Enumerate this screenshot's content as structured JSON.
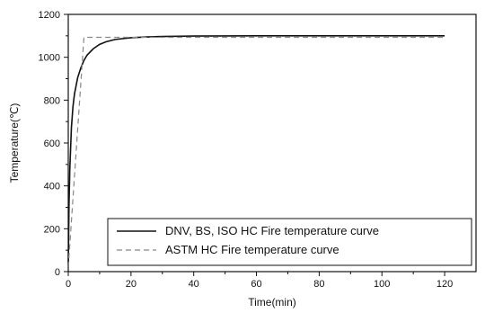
{
  "chart_data": {
    "type": "line",
    "title": "",
    "xlabel": "Time(min)",
    "ylabel": "Temperature(℃)",
    "xlim": [
      0,
      130
    ],
    "ylim": [
      0,
      1200
    ],
    "xticks": [
      0,
      20,
      40,
      60,
      80,
      100,
      120
    ],
    "yticks": [
      0,
      200,
      400,
      600,
      800,
      1000,
      1200
    ],
    "grid": false,
    "legend_position": "bottom-right",
    "series": [
      {
        "name": "DNV, BS, ISO HC Fire temperature curve",
        "style": "solid",
        "color": "#111111",
        "x": [
          0,
          0.25,
          0.5,
          1,
          1.5,
          2,
          3,
          4,
          5,
          6,
          8,
          10,
          12,
          15,
          20,
          25,
          30,
          40,
          60,
          80,
          100,
          120
        ],
        "y": [
          20,
          320,
          480,
          670,
          770,
          830,
          905,
          950,
          985,
          1010,
          1040,
          1060,
          1072,
          1083,
          1091,
          1095,
          1097,
          1099,
          1100,
          1100,
          1100,
          1100
        ]
      },
      {
        "name": "ASTM HC Fire temperature curve",
        "style": "dashed",
        "color": "#888888",
        "x": [
          0,
          5,
          120
        ],
        "y": [
          20,
          1093,
          1093
        ]
      }
    ]
  }
}
